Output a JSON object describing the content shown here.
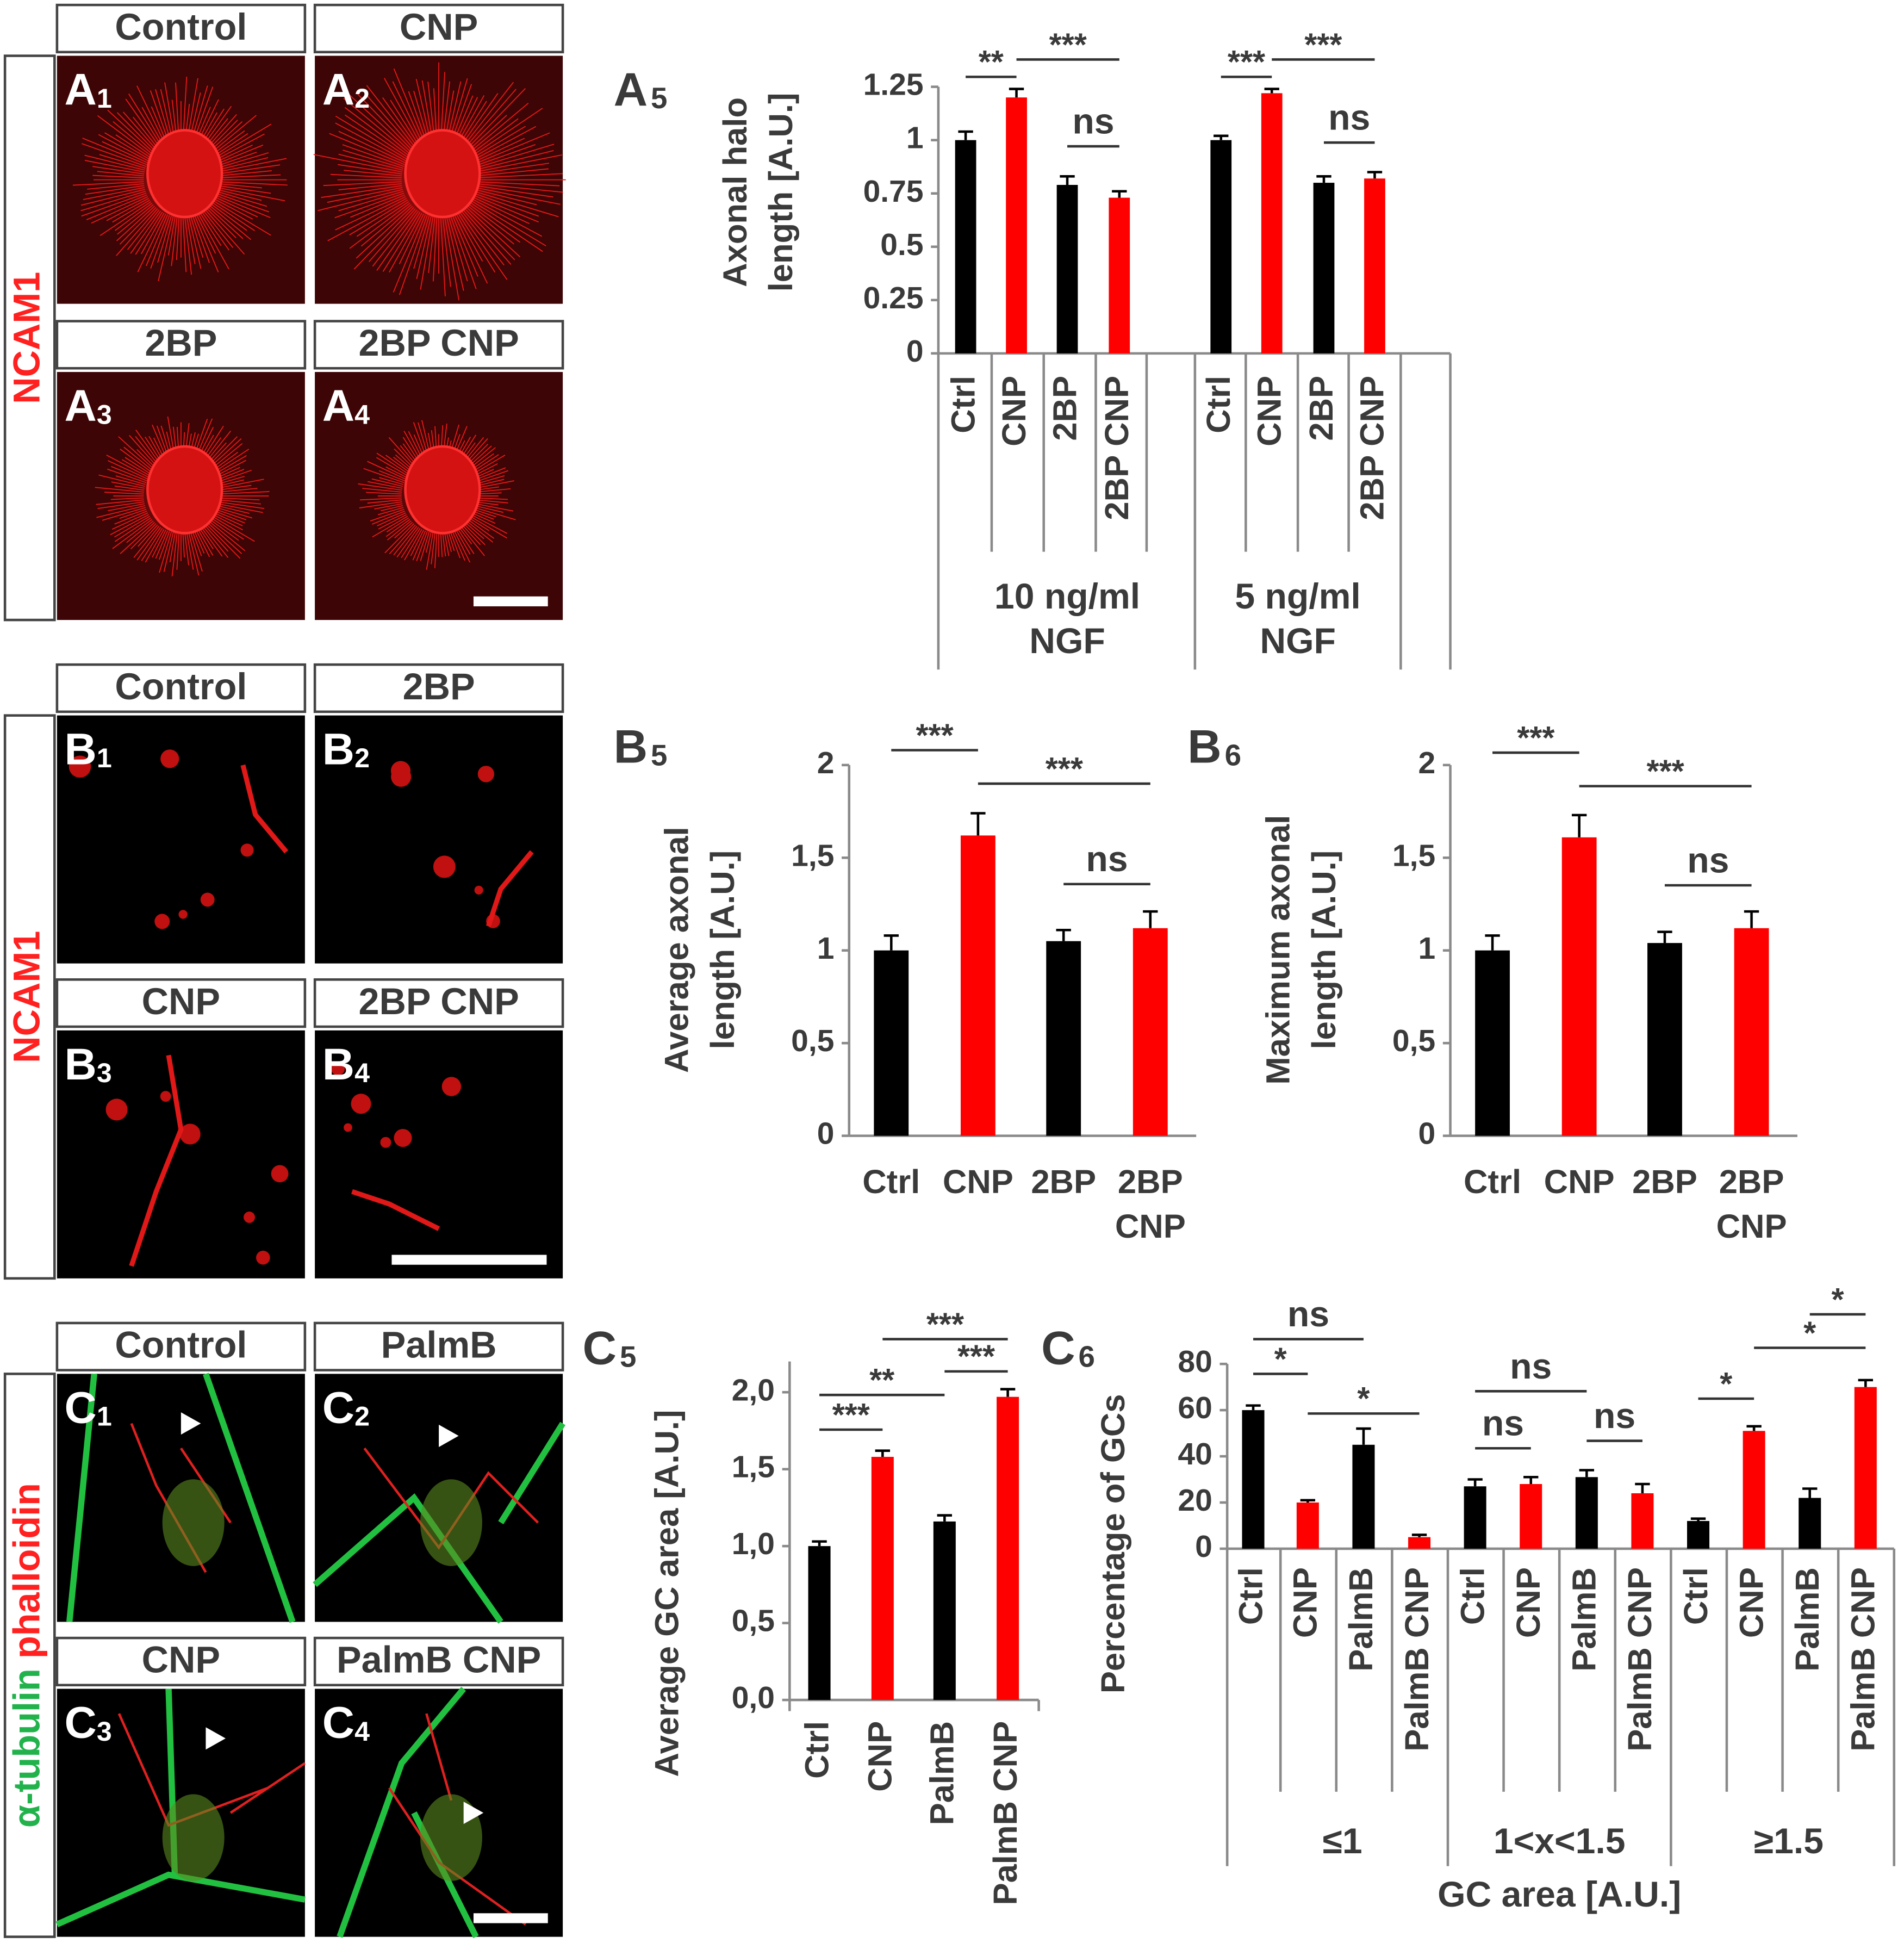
{
  "figure": {
    "rows": [
      {
        "side_label": [
          "NCAM1"
        ],
        "tiles": [
          {
            "title": "Control",
            "letter": "A",
            "sub": "1"
          },
          {
            "title": "CNP",
            "letter": "A",
            "sub": "2"
          },
          {
            "title": "2BP",
            "letter": "A",
            "sub": "3"
          },
          {
            "title": "2BP CNP",
            "letter": "A",
            "sub": "4"
          }
        ]
      },
      {
        "side_label": [
          "NCAM1"
        ],
        "tiles": [
          {
            "title": "Control",
            "letter": "B",
            "sub": "1"
          },
          {
            "title": "2BP",
            "letter": "B",
            "sub": "2"
          },
          {
            "title": "CNP",
            "letter": "B",
            "sub": "3"
          },
          {
            "title": "2BP CNP",
            "letter": "B",
            "sub": "4"
          }
        ]
      },
      {
        "side_label": [
          "α-tubulin",
          "phalloidin"
        ],
        "tiles": [
          {
            "title": "Control",
            "letter": "C",
            "sub": "1"
          },
          {
            "title": "PalmB",
            "letter": "C",
            "sub": "2"
          },
          {
            "title": "CNP",
            "letter": "C",
            "sub": "3"
          },
          {
            "title": "PalmB CNP",
            "letter": "C",
            "sub": "4"
          }
        ]
      }
    ]
  },
  "chart_data": [
    {
      "type": "bar",
      "letter": "A",
      "sub": "5",
      "ylabel": [
        "Axonal halo",
        "length [A.U.]"
      ],
      "categories": [
        [
          "Ctrl"
        ],
        [
          "CNP"
        ],
        [
          "2BP"
        ],
        [
          "2BP CNP"
        ],
        [
          "Ctrl"
        ],
        [
          "CNP"
        ],
        [
          "2BP"
        ],
        [
          "2BP CNP"
        ]
      ],
      "groups": [
        [
          "10 ng/ml",
          "NGF"
        ],
        [
          "5 ng/ml",
          "NGF"
        ]
      ],
      "values": [
        1.0,
        1.2,
        0.79,
        0.73,
        1.0,
        1.22,
        0.8,
        0.82
      ],
      "errors": [
        0.04,
        0.04,
        0.04,
        0.03,
        0.02,
        0.02,
        0.03,
        0.03
      ],
      "colors": [
        "#000000",
        "#ff0000",
        "#000000",
        "#ff0000",
        "#000000",
        "#ff0000",
        "#000000",
        "#ff0000"
      ],
      "ylim": [
        0,
        1.25
      ],
      "yticks": [
        0,
        0.25,
        0.5,
        0.75,
        1,
        1.25
      ],
      "annotations": [
        "**",
        "***",
        "ns",
        "***",
        "***",
        "ns"
      ]
    },
    {
      "type": "bar",
      "letter": "B",
      "sub": "5",
      "ylabel": [
        "Average axonal",
        "length [A.U.]"
      ],
      "categories": [
        [
          "Ctrl"
        ],
        [
          "CNP"
        ],
        [
          "2BP"
        ],
        [
          "2BP",
          "CNP"
        ]
      ],
      "values": [
        1.0,
        1.62,
        1.05,
        1.12
      ],
      "errors": [
        0.08,
        0.12,
        0.06,
        0.09
      ],
      "colors": [
        "#000000",
        "#ff0000",
        "#000000",
        "#ff0000"
      ],
      "ylim": [
        0,
        2
      ],
      "yticks": [
        0,
        {
          "value": 0.5,
          "label": "0,5"
        },
        1,
        {
          "value": 1.5,
          "label": "1,5"
        },
        2
      ],
      "annotations": [
        "***",
        "***",
        "ns"
      ]
    },
    {
      "type": "bar",
      "letter": "B",
      "sub": "6",
      "ylabel": [
        "Maximum axonal",
        "length [A.U.]"
      ],
      "categories": [
        [
          "Ctrl"
        ],
        [
          "CNP"
        ],
        [
          "2BP"
        ],
        [
          "2BP",
          "CNP"
        ]
      ],
      "values": [
        1.0,
        1.61,
        1.04,
        1.12
      ],
      "errors": [
        0.08,
        0.12,
        0.06,
        0.09
      ],
      "colors": [
        "#000000",
        "#ff0000",
        "#000000",
        "#ff0000"
      ],
      "ylim": [
        0,
        2
      ],
      "yticks": [
        0,
        {
          "value": 0.5,
          "label": "0,5"
        },
        1,
        {
          "value": 1.5,
          "label": "1,5"
        },
        2
      ],
      "annotations": [
        "***",
        "***",
        "ns"
      ]
    },
    {
      "type": "bar",
      "letter": "C",
      "sub": "5",
      "ylabel": [
        "Average GC area [A.U.]"
      ],
      "categories": [
        [
          "Ctrl"
        ],
        [
          "CNP"
        ],
        [
          "PalmB"
        ],
        [
          "PalmB CNP"
        ]
      ],
      "values": [
        1.0,
        1.58,
        1.16,
        1.97
      ],
      "errors": [
        0.03,
        0.04,
        0.04,
        0.05
      ],
      "colors": [
        "#000000",
        "#ff0000",
        "#000000",
        "#ff0000"
      ],
      "ylim": [
        0,
        2.2
      ],
      "yticks": [
        {
          "value": 0,
          "label": "0,0"
        },
        {
          "value": 0.5,
          "label": "0,5"
        },
        {
          "value": 1,
          "label": "1,0"
        },
        {
          "value": 1.5,
          "label": "1,5"
        },
        {
          "value": 2,
          "label": "2,0"
        }
      ],
      "annotations": [
        "***",
        "**",
        "***",
        "***"
      ]
    },
    {
      "type": "bar",
      "letter": "C",
      "sub": "6",
      "ylabel": [
        "Percentage of GCs"
      ],
      "xlabel": "GC area [A.U.]",
      "categories": [
        [
          "Ctrl"
        ],
        [
          "CNP"
        ],
        [
          "PalmB"
        ],
        [
          "PalmB CNP"
        ],
        [
          "Ctrl"
        ],
        [
          "CNP"
        ],
        [
          "PalmB"
        ],
        [
          "PalmB CNP"
        ],
        [
          "Ctrl"
        ],
        [
          "CNP"
        ],
        [
          "PalmB"
        ],
        [
          "PalmB CNP"
        ]
      ],
      "groups": [
        [
          "≤1"
        ],
        [
          "1<x<1.5"
        ],
        [
          "≥1.5"
        ]
      ],
      "values": [
        60,
        20,
        45,
        5,
        27,
        28,
        31,
        24,
        12,
        51,
        22,
        70
      ],
      "errors": [
        2,
        1,
        7,
        1,
        3,
        3,
        3,
        4,
        1,
        2,
        4,
        3
      ],
      "colors": [
        "#000000",
        "#ff0000",
        "#000000",
        "#ff0000",
        "#000000",
        "#ff0000",
        "#000000",
        "#ff0000",
        "#000000",
        "#ff0000",
        "#000000",
        "#ff0000"
      ],
      "ylim": [
        0,
        80
      ],
      "yticks": [
        0,
        20,
        40,
        60,
        80
      ],
      "annotations": [
        "ns",
        "*",
        "*",
        "ns",
        "ns",
        "ns",
        "*",
        "*",
        "*"
      ]
    }
  ]
}
